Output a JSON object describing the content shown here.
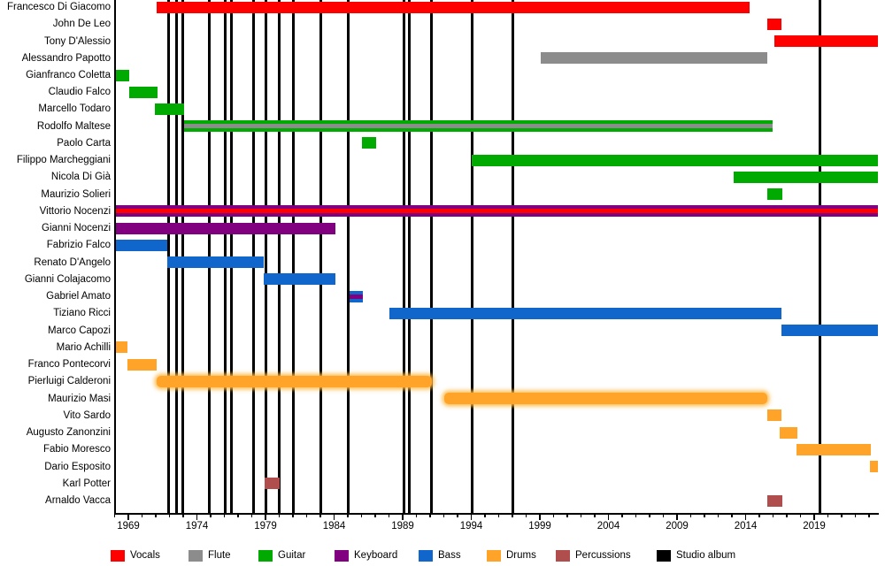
{
  "chart_data": {
    "type": "bar",
    "subtype": "band-members-timeline",
    "x_axis": {
      "unit": "year",
      "min": 1968.0,
      "max": 2023.65,
      "major_ticks": [
        1969,
        1974,
        1979,
        1984,
        1989,
        1994,
        1999,
        2004,
        2009,
        2014,
        2019
      ],
      "minor_tick_step": 1,
      "grid": false
    },
    "colors": {
      "vocals": "#FF0000",
      "flute": "#8C8C8C",
      "guitar": "#00AA00",
      "keyboard": "#800080",
      "bass": "#1166CC",
      "drums": "#FFA428",
      "percussions": "#B04D4D",
      "album": "#000000"
    },
    "legend": [
      {
        "label": "Vocals",
        "color_key": "vocals"
      },
      {
        "label": "Flute",
        "color_key": "flute"
      },
      {
        "label": "Guitar",
        "color_key": "guitar"
      },
      {
        "label": "Keyboard",
        "color_key": "keyboard"
      },
      {
        "label": "Bass",
        "color_key": "bass"
      },
      {
        "label": "Drums",
        "color_key": "drums"
      },
      {
        "label": "Percussions",
        "color_key": "percussions"
      },
      {
        "label": "Studio album",
        "color_key": "album"
      }
    ],
    "members": [
      {
        "name": "Francesco Di Giacomo",
        "bars": [
          {
            "start": 1971.05,
            "end": 2014.3,
            "color_key": "vocals"
          }
        ]
      },
      {
        "name": "John De Leo",
        "bars": [
          {
            "start": 2015.6,
            "end": 2016.6,
            "color_key": "vocals"
          }
        ]
      },
      {
        "name": "Tony D'Alessio",
        "bars": [
          {
            "start": 2016.1,
            "end": 2023.65,
            "color_key": "vocals"
          }
        ]
      },
      {
        "name": "Alessandro Papotto",
        "bars": [
          {
            "start": 1999.05,
            "end": 2015.6,
            "color_key": "flute"
          }
        ]
      },
      {
        "name": "Gianfranco Coletta",
        "bars": [
          {
            "start": 1968.05,
            "end": 1969.05,
            "color_key": "guitar"
          }
        ]
      },
      {
        "name": "Claudio Falco",
        "bars": [
          {
            "start": 1969.05,
            "end": 1971.1,
            "color_key": "guitar"
          }
        ]
      },
      {
        "name": "Marcello Todaro",
        "bars": [
          {
            "start": 1970.95,
            "end": 1973.05,
            "color_key": "guitar"
          }
        ]
      },
      {
        "name": "Rodolfo Maltese",
        "bars": [
          {
            "start": 1973.05,
            "end": 2016.0,
            "color_key": "guitar",
            "stripe_key": "flute"
          }
        ]
      },
      {
        "name": "Paolo Carta",
        "bars": [
          {
            "start": 1986.05,
            "end": 1987.05,
            "color_key": "guitar"
          }
        ]
      },
      {
        "name": "Filippo Marcheggiani",
        "bars": [
          {
            "start": 1994.05,
            "end": 2023.65,
            "color_key": "guitar"
          }
        ]
      },
      {
        "name": "Nicola Di Già",
        "bars": [
          {
            "start": 2013.1,
            "end": 2023.65,
            "color_key": "guitar"
          }
        ]
      },
      {
        "name": "Maurizio Solieri",
        "bars": [
          {
            "start": 2015.6,
            "end": 2016.7,
            "color_key": "guitar"
          }
        ]
      },
      {
        "name": "Vittorio Nocenzi",
        "bars": [
          {
            "start": 1968.05,
            "end": 2023.65,
            "color_key": "keyboard",
            "stripe_key": "vocals"
          }
        ]
      },
      {
        "name": "Gianni Nocenzi",
        "bars": [
          {
            "start": 1968.05,
            "end": 1984.1,
            "color_key": "keyboard"
          }
        ]
      },
      {
        "name": "Fabrizio Falco",
        "bars": [
          {
            "start": 1968.05,
            "end": 1971.85,
            "color_key": "bass"
          }
        ]
      },
      {
        "name": "Renato D'Angelo",
        "bars": [
          {
            "start": 1971.85,
            "end": 1978.85,
            "color_key": "bass"
          }
        ]
      },
      {
        "name": "Gianni Colajacomo",
        "bars": [
          {
            "start": 1978.85,
            "end": 1984.1,
            "color_key": "bass"
          }
        ]
      },
      {
        "name": "Gabriel Amato",
        "bars": [
          {
            "start": 1985.1,
            "end": 1986.1,
            "color_key": "bass",
            "stripe_key": "keyboard"
          }
        ]
      },
      {
        "name": "Tiziano Ricci",
        "bars": [
          {
            "start": 1988.05,
            "end": 2016.6,
            "color_key": "bass"
          }
        ]
      },
      {
        "name": "Marco Capozi",
        "bars": [
          {
            "start": 2016.6,
            "end": 2023.65,
            "color_key": "bass"
          }
        ]
      },
      {
        "name": "Mario Achilli",
        "bars": [
          {
            "start": 1968.05,
            "end": 1968.95,
            "color_key": "drums"
          }
        ]
      },
      {
        "name": "Franco Pontecorvi",
        "bars": [
          {
            "start": 1968.95,
            "end": 1971.05,
            "color_key": "drums"
          }
        ]
      },
      {
        "name": "Pierluigi Calderoni",
        "bars": [
          {
            "start": 1971.05,
            "end": 1991.15,
            "color_key": "drums",
            "glow": true
          }
        ]
      },
      {
        "name": "Maurizio Masi",
        "bars": [
          {
            "start": 1992.05,
            "end": 2015.6,
            "color_key": "drums",
            "glow": true
          }
        ]
      },
      {
        "name": "Vito Sardo",
        "bars": [
          {
            "start": 2015.6,
            "end": 2016.6,
            "color_key": "drums"
          }
        ]
      },
      {
        "name": "Augusto Zanonzini",
        "bars": [
          {
            "start": 2016.5,
            "end": 2017.8,
            "color_key": "drums"
          }
        ]
      },
      {
        "name": "Fabio Moresco",
        "bars": [
          {
            "start": 2017.7,
            "end": 2023.1,
            "color_key": "drums"
          }
        ]
      },
      {
        "name": "Dario Esposito",
        "bars": [
          {
            "start": 2023.05,
            "end": 2023.65,
            "color_key": "drums"
          }
        ]
      },
      {
        "name": "Karl Potter",
        "bars": [
          {
            "start": 1978.95,
            "end": 1980.05,
            "color_key": "percussions"
          }
        ]
      },
      {
        "name": "Arnaldo Vacca",
        "bars": [
          {
            "start": 2015.6,
            "end": 2016.7,
            "color_key": "percussions"
          }
        ]
      }
    ],
    "studio_albums_marker_years": [
      1971.95,
      1972.5,
      1972.95,
      1974.9,
      1976.05,
      1976.5,
      1978.1,
      1979.05,
      1980.0,
      1981.05,
      1983.0,
      1985.05,
      1989.1,
      1989.5,
      1991.1,
      1994.05,
      1997.05,
      2019.4
    ]
  }
}
